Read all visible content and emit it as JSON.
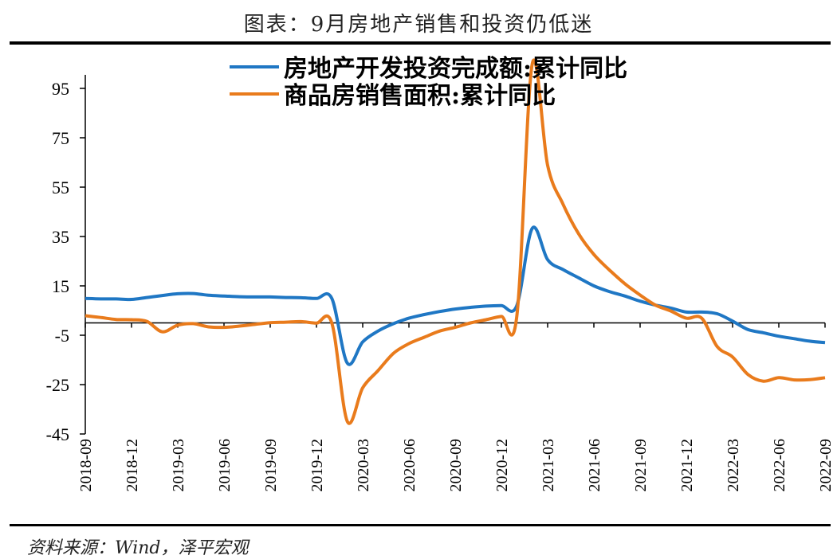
{
  "header": {
    "title": "图表：9月房地产销售和投资仍低迷"
  },
  "footer": {
    "source": "资料来源：Wind，泽平宏观"
  },
  "colors": {
    "series1": "#1f77c4",
    "series2": "#e97b1c",
    "axis": "#000000"
  },
  "chart_data": {
    "type": "line",
    "title": "图表：9月房地产销售和投资仍低迷",
    "xlabel": "",
    "ylabel": "",
    "ylim": [
      -45,
      105
    ],
    "yticks": [
      95,
      75,
      55,
      35,
      15,
      -5,
      -25,
      -45
    ],
    "xticks": [
      "2018-09",
      "2018-12",
      "2019-03",
      "2019-06",
      "2019-09",
      "2019-12",
      "2020-03",
      "2020-06",
      "2020-09",
      "2020-12",
      "2021-03",
      "2021-06",
      "2021-09",
      "2021-12",
      "2022-03",
      "2022-06",
      "2022-09"
    ],
    "legend_position": "top-center",
    "grid": false,
    "x": [
      "2018-09",
      "2018-10",
      "2018-11",
      "2018-12",
      "2019-01",
      "2019-02",
      "2019-03",
      "2019-04",
      "2019-05",
      "2019-06",
      "2019-07",
      "2019-08",
      "2019-09",
      "2019-10",
      "2019-11",
      "2019-12",
      "2020-01",
      "2020-02",
      "2020-03",
      "2020-04",
      "2020-05",
      "2020-06",
      "2020-07",
      "2020-08",
      "2020-09",
      "2020-10",
      "2020-11",
      "2020-12",
      "2021-01",
      "2021-02",
      "2021-03",
      "2021-04",
      "2021-05",
      "2021-06",
      "2021-07",
      "2021-08",
      "2021-09",
      "2021-10",
      "2021-11",
      "2021-12",
      "2022-01",
      "2022-02",
      "2022-03",
      "2022-04",
      "2022-05",
      "2022-06",
      "2022-07",
      "2022-08",
      "2022-09"
    ],
    "series": [
      {
        "name": "房地产开发投资完成额:累计同比",
        "values": [
          9.9,
          9.7,
          9.7,
          9.5,
          10.3,
          11.1,
          11.8,
          11.9,
          11.2,
          10.9,
          10.6,
          10.5,
          10.5,
          10.3,
          10.2,
          9.9,
          9.9,
          -16.3,
          -7.7,
          -3.3,
          -0.3,
          1.9,
          3.4,
          4.6,
          5.6,
          6.3,
          6.8,
          7.0,
          7.0,
          38.3,
          25.6,
          21.6,
          18.3,
          15.0,
          12.7,
          10.9,
          8.8,
          7.2,
          6.0,
          4.4,
          4.4,
          3.7,
          0.7,
          -2.7,
          -4.0,
          -5.4,
          -6.4,
          -7.4,
          -8.0
        ]
      },
      {
        "name": "商品房销售面积:累计同比",
        "values": [
          2.9,
          2.2,
          1.4,
          1.3,
          0.6,
          -3.6,
          -0.9,
          -0.3,
          -1.6,
          -1.8,
          -1.3,
          -0.6,
          0.1,
          0.3,
          0.5,
          -0.1,
          -0.1,
          -39.9,
          -26.3,
          -19.3,
          -12.3,
          -8.4,
          -5.8,
          -3.3,
          -1.8,
          0.0,
          1.3,
          2.6,
          2.6,
          104.9,
          63.8,
          48.1,
          36.2,
          27.7,
          21.5,
          15.9,
          11.3,
          7.2,
          4.8,
          1.9,
          1.9,
          -9.6,
          -13.8,
          -20.9,
          -23.6,
          -22.2,
          -23.1,
          -23.0,
          -22.2
        ]
      }
    ]
  }
}
